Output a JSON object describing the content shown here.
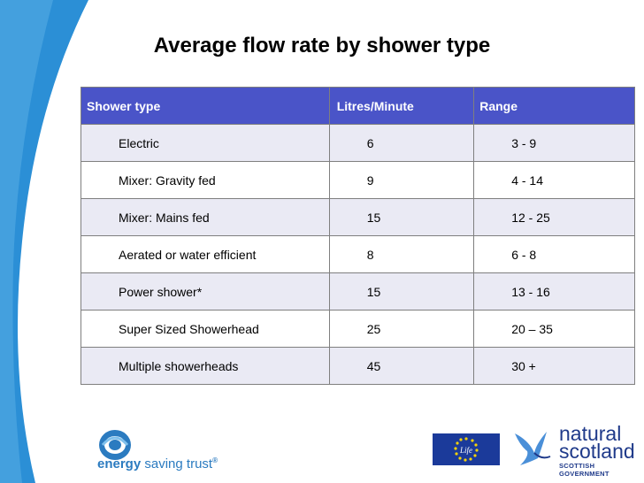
{
  "slide": {
    "title": "Average flow rate by shower type"
  },
  "table": {
    "headers": [
      "Shower type",
      "Litres/Minute",
      "Range"
    ],
    "rows": [
      {
        "type": "Electric",
        "rate": "6",
        "range": "3 - 9"
      },
      {
        "type": "Mixer: Gravity fed",
        "rate": "9",
        "range": "4 - 14"
      },
      {
        "type": "Mixer: Mains fed",
        "rate": "15",
        "range": "12 - 25"
      },
      {
        "type": "Aerated or water efficient",
        "rate": "8",
        "range": "6 - 8"
      },
      {
        "type": "Power shower*",
        "rate": "15",
        "range": "13 - 16"
      },
      {
        "type": "Super Sized Showerhead",
        "rate": "25",
        "range": "20 – 35"
      },
      {
        "type": "Multiple showerheads",
        "rate": "45",
        "range": "30 +"
      }
    ]
  },
  "logos": {
    "energy_saving_trust": {
      "word1": "energy",
      "word2": "saving trust",
      "mark": "®"
    },
    "eu_life": {
      "text": "Life"
    },
    "natural_scotland": {
      "line1": "natural",
      "line2": "scotland",
      "line3": "SCOTTISH GOVERNMENT"
    }
  },
  "colors": {
    "header_bg": "#4a54c8",
    "band_blue": "#2b8fd6",
    "row_alt": "#eaeaf4"
  }
}
